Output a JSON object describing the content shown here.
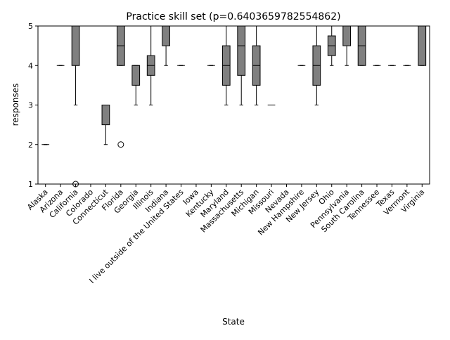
{
  "chart_data": {
    "type": "box",
    "title": "Practice skill set (p=0.6403659782554862)",
    "xlabel": "State",
    "ylabel": "responses",
    "ylim": [
      1,
      5
    ],
    "yticks": [
      1,
      2,
      3,
      4,
      5
    ],
    "grid": false,
    "box_color": "#808080",
    "categories": [
      "Alaska",
      "Arizona",
      "California",
      "Colorado",
      "Connecticut",
      "Florida",
      "Georgia",
      "Illinois",
      "Indiana",
      "I live outside of the United States",
      "Iowa",
      "Kentucky",
      "Maryland",
      "Massachusetts",
      "Michigan",
      "Missouri",
      "Nevada",
      "New Hampshire",
      "New Jersey",
      "Ohio",
      "Pennsylvania",
      "South Carolina",
      "Tennessee",
      "Texas",
      "Vermont",
      "Virginia"
    ],
    "boxes": [
      {
        "q1": 2,
        "median": 2,
        "q3": 2,
        "whislo": 2,
        "whishi": 2,
        "fliers": []
      },
      {
        "q1": 4,
        "median": 4,
        "q3": 4,
        "whislo": 4,
        "whishi": 4,
        "fliers": []
      },
      {
        "q1": 4,
        "median": 5,
        "q3": 5,
        "whislo": 3,
        "whishi": 5,
        "fliers": [
          1
        ]
      },
      {
        "q1": 5,
        "median": 5,
        "q3": 5,
        "whislo": 5,
        "whishi": 5,
        "fliers": []
      },
      {
        "q1": 2.5,
        "median": 3,
        "q3": 3,
        "whislo": 2,
        "whishi": 3,
        "fliers": []
      },
      {
        "q1": 4,
        "median": 4.5,
        "q3": 5,
        "whislo": 4,
        "whishi": 5,
        "fliers": [
          2
        ]
      },
      {
        "q1": 3.5,
        "median": 4,
        "q3": 4,
        "whislo": 3,
        "whishi": 4,
        "fliers": []
      },
      {
        "q1": 3.75,
        "median": 4,
        "q3": 4.25,
        "whislo": 3,
        "whishi": 5,
        "fliers": []
      },
      {
        "q1": 4.5,
        "median": 5,
        "q3": 5,
        "whislo": 4,
        "whishi": 5,
        "fliers": []
      },
      {
        "q1": 4,
        "median": 4,
        "q3": 4,
        "whislo": 4,
        "whishi": 4,
        "fliers": []
      },
      {
        "q1": 5,
        "median": 5,
        "q3": 5,
        "whislo": 5,
        "whishi": 5,
        "fliers": []
      },
      {
        "q1": 4,
        "median": 4,
        "q3": 4,
        "whislo": 4,
        "whishi": 4,
        "fliers": []
      },
      {
        "q1": 3.5,
        "median": 4,
        "q3": 4.5,
        "whislo": 3,
        "whishi": 5,
        "fliers": []
      },
      {
        "q1": 3.75,
        "median": 4.5,
        "q3": 5,
        "whislo": 3,
        "whishi": 5,
        "fliers": []
      },
      {
        "q1": 3.5,
        "median": 4,
        "q3": 4.5,
        "whislo": 3,
        "whishi": 5,
        "fliers": []
      },
      {
        "q1": 3,
        "median": 3,
        "q3": 3,
        "whislo": 3,
        "whishi": 3,
        "fliers": []
      },
      {
        "q1": 5,
        "median": 5,
        "q3": 5,
        "whislo": 5,
        "whishi": 5,
        "fliers": []
      },
      {
        "q1": 4,
        "median": 4,
        "q3": 4,
        "whislo": 4,
        "whishi": 4,
        "fliers": []
      },
      {
        "q1": 3.5,
        "median": 4,
        "q3": 4.5,
        "whislo": 3,
        "whishi": 5,
        "fliers": []
      },
      {
        "q1": 4.25,
        "median": 4.5,
        "q3": 4.75,
        "whislo": 4,
        "whishi": 5,
        "fliers": []
      },
      {
        "q1": 4.5,
        "median": 5,
        "q3": 5,
        "whislo": 4,
        "whishi": 5,
        "fliers": []
      },
      {
        "q1": 4,
        "median": 4.5,
        "q3": 5,
        "whislo": 4,
        "whishi": 5,
        "fliers": []
      },
      {
        "q1": 4,
        "median": 4,
        "q3": 4,
        "whislo": 4,
        "whishi": 4,
        "fliers": []
      },
      {
        "q1": 4,
        "median": 4,
        "q3": 4,
        "whislo": 4,
        "whishi": 4,
        "fliers": []
      },
      {
        "q1": 4,
        "median": 4,
        "q3": 4,
        "whislo": 4,
        "whishi": 4,
        "fliers": []
      },
      {
        "q1": 4,
        "median": 5,
        "q3": 5,
        "whislo": 4,
        "whishi": 5,
        "fliers": []
      }
    ]
  }
}
